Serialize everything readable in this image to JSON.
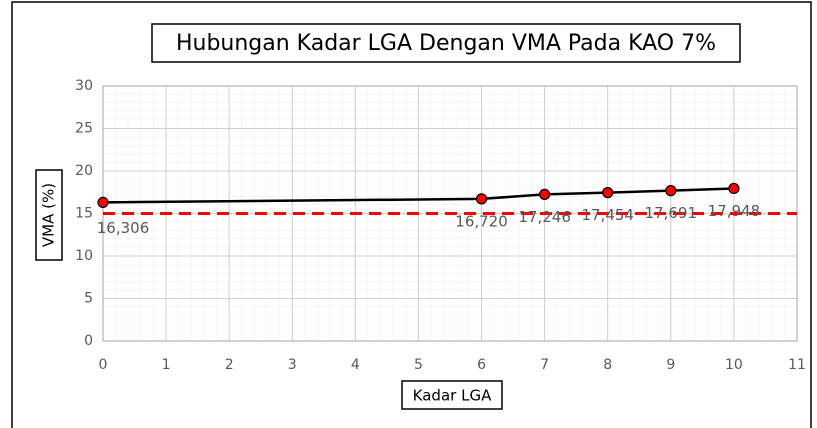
{
  "chart_data": {
    "type": "line",
    "title": "Hubungan Kadar LGA Dengan VMA Pada KAO 7%",
    "x_label": "Kadar LGA",
    "y_label": "VMA (%)",
    "x": [
      0,
      6,
      7,
      8,
      9,
      10
    ],
    "series": [
      {
        "color": "#000000",
        "marker_color": "#ff0000",
        "values": [
          16.306,
          16.72,
          17.246,
          17.454,
          17.691,
          17.948
        ],
        "value_labels": [
          "16,306",
          "16,720",
          "17,246",
          "17,454",
          "17,691",
          "17,948"
        ]
      }
    ],
    "reference_lines": [
      {
        "value": 15,
        "color": "#ff0000"
      }
    ],
    "xlim": [
      0,
      11
    ],
    "xticks": [
      0,
      1,
      2,
      3,
      4,
      5,
      6,
      7,
      8,
      9,
      10,
      11
    ],
    "ylim": [
      0,
      30
    ],
    "yticks": [
      0,
      5,
      10,
      15,
      20,
      25,
      30
    ],
    "grid": true
  }
}
